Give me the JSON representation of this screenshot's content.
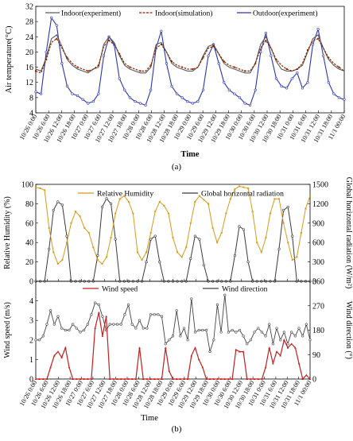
{
  "x_labels": [
    "10/26 0:00",
    "10/26 6:00",
    "10/26 12:00",
    "10/26 18:00",
    "10/27 0:00",
    "10/27 6:00",
    "10/27 12:00",
    "10/27 18:00",
    "10/28 0:00",
    "10/28 6:00",
    "10/28 12:00",
    "10/28 18:00",
    "10/29 0:00",
    "10/29 6:00",
    "10/29 12:00",
    "10/29 18:00",
    "10/30 0:00",
    "10/30 6:00",
    "10/30 12:00",
    "10/30 18:00",
    "10/31 0:00",
    "10/31 6:00",
    "10/31 12:00",
    "10/31 18:00",
    "11/1 00:00"
  ],
  "chart_data": [
    {
      "type": "line",
      "panel": "(a)",
      "xlabel": "Time",
      "ylabel": "Air temperature(°C)",
      "ylim": [
        4,
        32
      ],
      "yticks": [
        4,
        8,
        12,
        16,
        20,
        24,
        28,
        32
      ],
      "colors": {
        "indoor_exp": "#5a5a5a",
        "indoor_sim": "#8b2500",
        "outdoor": "#2b35b0"
      },
      "series": [
        {
          "name": "Indoor(experiment)",
          "values": [
            15.5,
            15,
            18.5,
            23.5,
            24.5,
            21.5,
            18,
            16.5,
            15.5,
            15,
            14.5,
            15.5,
            16,
            22,
            24,
            22.5,
            19,
            16.5,
            15.5,
            15,
            14.5,
            14.5,
            16,
            22,
            22.5,
            20,
            17,
            16,
            15.5,
            15,
            15,
            16,
            19,
            21.5,
            22,
            19.5,
            17,
            16,
            15.5,
            15,
            14.5,
            14.5,
            17,
            22,
            24,
            21,
            17.5,
            15.5,
            15,
            15,
            15.5,
            16.5,
            20,
            23.5,
            24.5,
            21,
            18,
            16.5,
            15.5,
            15
          ]
        },
        {
          "name": "Indoor(simulation)",
          "values": [
            15,
            14.5,
            18,
            22.5,
            23.5,
            21,
            18.5,
            17,
            16,
            15.5,
            15,
            15.5,
            16.5,
            21.5,
            23,
            22,
            19.5,
            17,
            16,
            15.5,
            15,
            15,
            16.5,
            21,
            22,
            20,
            17.5,
            16.5,
            16,
            15.5,
            15.5,
            16,
            18.5,
            21,
            21.5,
            19.5,
            17.5,
            16.5,
            16,
            15.5,
            15,
            15,
            17,
            21,
            23,
            21,
            18,
            16.5,
            15.5,
            15,
            15.5,
            17,
            20.5,
            23,
            23.5,
            21,
            18.5,
            17,
            16,
            15
          ]
        },
        {
          "name": "Outdoor(experiment)",
          "values": [
            9.5,
            9,
            20,
            29,
            27,
            17,
            11,
            9,
            8.5,
            7.5,
            6.5,
            7,
            9,
            19,
            24,
            22,
            13,
            10,
            8,
            7,
            6.5,
            6,
            10,
            21,
            25.5,
            17,
            11,
            9,
            8,
            7,
            6.5,
            7,
            10,
            19,
            22,
            17,
            12,
            10,
            9,
            8,
            6.5,
            6,
            10,
            20,
            25,
            19,
            13,
            11,
            10.5,
            13,
            14.5,
            10.5,
            12,
            22,
            26,
            19,
            12,
            9,
            8,
            7.5
          ]
        }
      ]
    },
    {
      "type": "line",
      "panel": "(b) top",
      "ylabel_left": "Relative Humidity (%)",
      "ylabel_right": "Global horizontal radiation (W/m²)",
      "ylim_left": [
        0,
        100
      ],
      "ylim_right": [
        0,
        1500
      ],
      "yticks_left": [
        0,
        20,
        40,
        60,
        80,
        100
      ],
      "yticks_right": [
        0,
        300,
        600,
        900,
        1200,
        1500
      ],
      "colors": {
        "rh": "#d89a1a",
        "rad": "#3a3a3a"
      },
      "series": [
        {
          "name": "Relative Humidity",
          "axis": "left",
          "values": [
            97,
            96,
            94,
            55,
            30,
            18,
            22,
            40,
            60,
            72,
            67,
            55,
            50,
            35,
            22,
            18,
            25,
            45,
            70,
            85,
            88,
            82,
            70,
            30,
            22,
            30,
            50,
            72,
            82,
            78,
            70,
            45,
            30,
            25,
            35,
            60,
            82,
            88,
            84,
            80,
            55,
            40,
            50,
            70,
            85,
            95,
            98,
            97,
            96,
            72,
            40,
            30,
            45,
            70,
            85,
            85,
            60,
            40,
            22,
            25,
            50,
            75,
            88
          ]
        },
        {
          "name": "Global horizontal radiation",
          "axis": "right",
          "values": [
            0,
            0,
            0,
            500,
            1100,
            1230,
            1180,
            700,
            0,
            0,
            0,
            0,
            0,
            0,
            400,
            1150,
            1280,
            1200,
            650,
            0,
            0,
            0,
            0,
            0,
            0,
            300,
            650,
            700,
            300,
            0,
            0,
            0,
            0,
            0,
            0,
            350,
            700,
            650,
            250,
            0,
            0,
            0,
            0,
            0,
            0,
            400,
            850,
            800,
            300,
            0,
            0,
            0,
            0,
            0,
            0,
            500,
            1100,
            1150,
            700,
            0,
            0,
            0,
            0
          ]
        }
      ]
    },
    {
      "type": "line",
      "panel": "(b) bottom",
      "xlabel": "Time",
      "ylabel_left": "Wind speed (m/s)",
      "ylabel_right": "Wind direction (°)",
      "ylim_left": [
        0,
        5
      ],
      "ylim_right": [
        0,
        360
      ],
      "yticks_left": [
        0,
        1,
        2,
        3,
        4
      ],
      "yticks_right": [
        0,
        90,
        180,
        270,
        360
      ],
      "colors": {
        "speed": "#c02020",
        "dir": "#444444"
      },
      "series": [
        {
          "name": "Wind speed",
          "axis": "left",
          "values": [
            0,
            0,
            0,
            0,
            0.6,
            1.2,
            1.4,
            1.1,
            1.6,
            0.6,
            0,
            0,
            0,
            0,
            0,
            0,
            2.6,
            3.4,
            2.2,
            3.2,
            0,
            0,
            0,
            0,
            0,
            0,
            0,
            0,
            1.6,
            0,
            0,
            0,
            0,
            0,
            0,
            1.6,
            0.4,
            0,
            0,
            0,
            0,
            0,
            1.2,
            1.6,
            1,
            0.6,
            0,
            0,
            0,
            0,
            0,
            0,
            0,
            0,
            1.5,
            1.4,
            1.4,
            0,
            0,
            0,
            0,
            0,
            0.6,
            1.6,
            0.8,
            1.4,
            1.2,
            2,
            1.6,
            1.8,
            1.6,
            0.8,
            0,
            0.2,
            0
          ]
        },
        {
          "name": "Wind direction",
          "axis": "left",
          "values": [
            2,
            2,
            2.2,
            2.8,
            3.5,
            2.8,
            3.2,
            2.6,
            2.5,
            2.5,
            2.8,
            2.6,
            2.4,
            2.5,
            2.8,
            3.3,
            3.9,
            3.8,
            3.2,
            2.5,
            2.8,
            2.8,
            2.8,
            2.8,
            3.3,
            3.8,
            2.8,
            2.6,
            3,
            2.6,
            2.6,
            3.3,
            3.3,
            3.3,
            3.2,
            1.8,
            2,
            2.2,
            3.5,
            2.2,
            2.6,
            2,
            4.1,
            2.4,
            2.5,
            2.5,
            2.5,
            1.4,
            2,
            3.8,
            2.4,
            4.3,
            2.4,
            2.5,
            2.4,
            2.5,
            2.2,
            1.8,
            2,
            2.4,
            2.6,
            2.4,
            2.2,
            2.8,
            1.8,
            2.6,
            2,
            2.4,
            1.8,
            2.4,
            2.2,
            2.6,
            2.2,
            2.8,
            2
          ]
        }
      ]
    }
  ],
  "captions": {
    "a": "(a)",
    "b": "(b)"
  }
}
